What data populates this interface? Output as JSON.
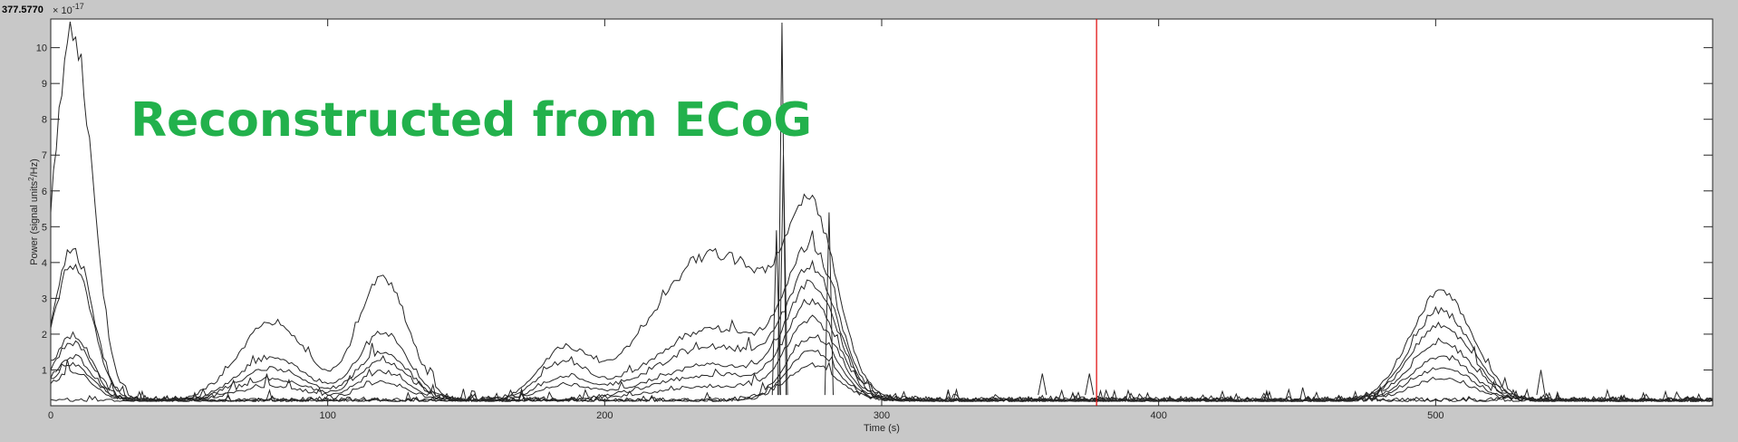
{
  "cursor_readout": "377.5770",
  "overlay_title": "Reconstructed from ECoG",
  "colors": {
    "background": "#c8c8c8",
    "plot_area": "#ffffff",
    "traces": "#262626",
    "cursor_line": "#e00000",
    "overlay_text": "#22b14c"
  },
  "chart_data": {
    "type": "line",
    "title": "",
    "xlabel": "Time (s)",
    "ylabel": "Power  (signal units²/Hz)",
    "ylabel_main": "Power  (signal units",
    "ylabel_sup": "2",
    "ylabel_tail": "/Hz)",
    "y_exponent_base": "× 10",
    "y_exponent_power": "-17",
    "xlim": [
      0,
      600
    ],
    "ylim": [
      0,
      10.8
    ],
    "x_ticks": [
      0,
      100,
      200,
      300,
      400,
      500
    ],
    "x_tick_labels": [
      "0",
      "100",
      "200",
      "300",
      "400",
      "500"
    ],
    "y_ticks": [
      1,
      2,
      3,
      4,
      5,
      6,
      7,
      8,
      9,
      10
    ],
    "y_tick_labels": [
      "1",
      "2",
      "3",
      "4",
      "5",
      "6",
      "7",
      "8",
      "9",
      "10"
    ],
    "grid": false,
    "cursor_x": 377.577,
    "series_note_envelopes": [
      {
        "center": 8,
        "width": 7,
        "peaks": [
          10.3,
          4.2,
          3.8,
          1.8,
          1.6,
          1.2,
          1.0,
          0.8
        ]
      },
      {
        "center": 80,
        "width": 12,
        "peaks": [
          2.2,
          1.2,
          0.9,
          0.6,
          0.4
        ]
      },
      {
        "center": 120,
        "width": 9,
        "peaks": [
          3.45,
          1.9,
          1.35,
          1.1,
          0.8,
          0.5
        ]
      },
      {
        "center": 185,
        "width": 9,
        "peaks": [
          1.3,
          1.0,
          0.6,
          0.4
        ]
      },
      {
        "center": 240,
        "width": 22,
        "peaks": [
          4.1,
          2.0,
          1.5,
          1.0,
          0.7,
          0.4
        ]
      },
      {
        "center": 275,
        "width": 9,
        "peaks": [
          4.4,
          3.8,
          3.3,
          3.0,
          2.6,
          2.2,
          1.8,
          1.4,
          1.0
        ]
      },
      {
        "center": 502,
        "width": 11,
        "peaks": [
          3.05,
          2.5,
          2.1,
          1.6,
          1.2,
          0.9,
          0.6
        ]
      }
    ],
    "spikes": [
      {
        "x": 264,
        "y": 10.7
      },
      {
        "x": 264.5,
        "y": 7.0
      },
      {
        "x": 281,
        "y": 5.4
      },
      {
        "x": 262,
        "y": 4.9
      },
      {
        "x": 358,
        "y": 0.9
      },
      {
        "x": 375,
        "y": 0.9
      },
      {
        "x": 538,
        "y": 1.0
      }
    ]
  }
}
